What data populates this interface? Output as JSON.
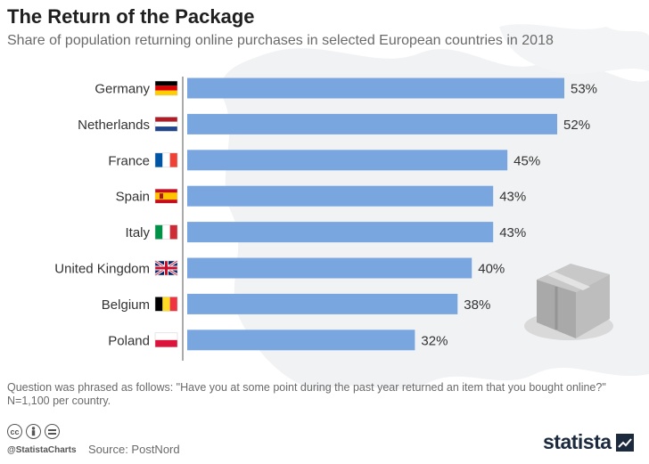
{
  "header": {
    "title": "The Return of the Package",
    "subtitle": "Share of population returning online purchases in selected European countries in 2018"
  },
  "footer": {
    "note_line1": "Question was phrased as follows: \"Have you at some point during the past year returned an item that you bought online?\"",
    "note_line2": "N=1,100 per country.",
    "handle": "@StatistaCharts",
    "source": "Source: PostNord",
    "brand": "statista"
  },
  "colors": {
    "bar": "#7aa6e0",
    "text": "#333333",
    "axis": "#555555"
  },
  "icons": [
    "cc-icon",
    "person-icon",
    "equals-icon",
    "statista-logo-icon",
    "package-box-icon"
  ],
  "chart_data": {
    "type": "bar",
    "orientation": "horizontal",
    "categories": [
      "Germany",
      "Netherlands",
      "France",
      "Spain",
      "Italy",
      "United Kingdom",
      "Belgium",
      "Poland"
    ],
    "values": [
      53,
      52,
      45,
      43,
      43,
      40,
      38,
      32
    ],
    "value_labels": [
      "53%",
      "52%",
      "45%",
      "43%",
      "43%",
      "40%",
      "38%",
      "32%"
    ],
    "flags": [
      "de",
      "nl",
      "fr",
      "es",
      "it",
      "gb",
      "be",
      "pl"
    ],
    "unit": "%",
    "xlim": [
      0,
      53
    ],
    "grid": false,
    "legend": "none"
  }
}
